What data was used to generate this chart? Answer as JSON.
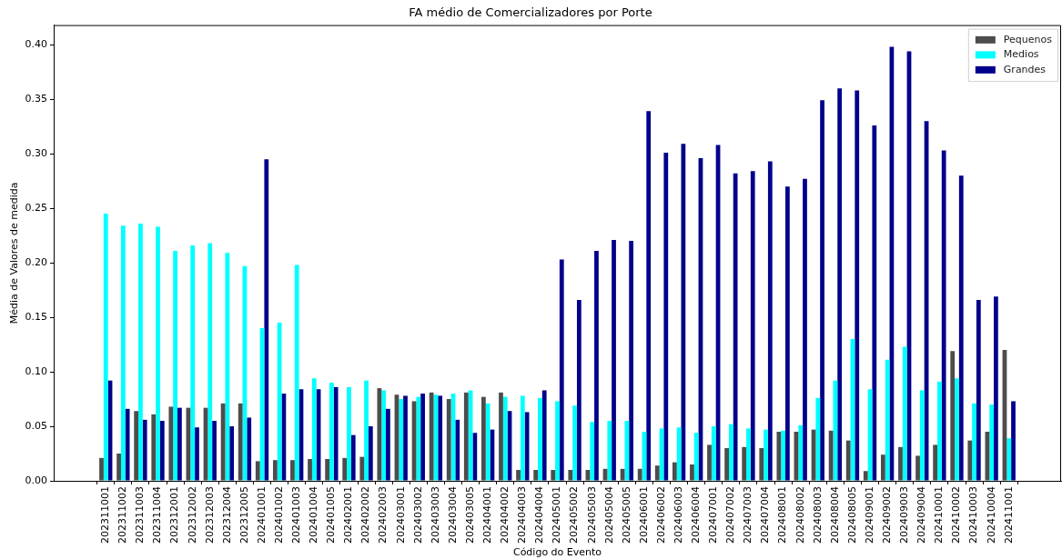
{
  "chart_data": {
    "type": "bar",
    "title": "FA médio de Comercializadores por Porte",
    "xlabel": "Código do Evento",
    "ylabel": "Média de Valores de medida",
    "categories": [
      "202311001",
      "202311002",
      "202311003",
      "202311004",
      "202312001",
      "202312002",
      "202312003",
      "202312004",
      "202312005",
      "202401001",
      "202401002",
      "202401003",
      "202401004",
      "202401005",
      "202402001",
      "202402002",
      "202402003",
      "202403001",
      "202403002",
      "202403003",
      "202403004",
      "202403005",
      "202404001",
      "202404002",
      "202404003",
      "202404004",
      "202405001",
      "202405002",
      "202405003",
      "202405004",
      "202405005",
      "202406001",
      "202406002",
      "202406003",
      "202406004",
      "202407001",
      "202407002",
      "202407003",
      "202407004",
      "202408001",
      "202408002",
      "202408003",
      "202408004",
      "202408005",
      "202409001",
      "202409002",
      "202409003",
      "202409004",
      "202410001",
      "202410002",
      "202410003",
      "202410004",
      "202411001"
    ],
    "series": [
      {
        "name": "Pequenos",
        "color": "#4d4d4d",
        "values": [
          0.021,
          0.025,
          0.064,
          0.061,
          0.068,
          0.067,
          0.067,
          0.071,
          0.071,
          0.018,
          0.019,
          0.019,
          0.02,
          0.02,
          0.021,
          0.022,
          0.085,
          0.079,
          0.073,
          0.081,
          0.075,
          0.081,
          0.077,
          0.081,
          0.01,
          0.01,
          0.01,
          0.01,
          0.01,
          0.011,
          0.011,
          0.011,
          0.014,
          0.017,
          0.015,
          0.033,
          0.03,
          0.031,
          0.03,
          0.045,
          0.045,
          0.047,
          0.046,
          0.037,
          0.009,
          0.024,
          0.031,
          0.023,
          0.033,
          0.119,
          0.037,
          0.045,
          0.12
        ]
      },
      {
        "name": "Medios",
        "color": "#00ffff",
        "values": [
          0.245,
          0.234,
          0.236,
          0.233,
          0.211,
          0.216,
          0.218,
          0.209,
          0.197,
          0.14,
          0.145,
          0.198,
          0.094,
          0.09,
          0.086,
          0.092,
          0.083,
          0.075,
          0.077,
          0.079,
          0.08,
          0.083,
          0.071,
          0.077,
          0.078,
          0.076,
          0.073,
          0.069,
          0.054,
          0.055,
          0.055,
          0.045,
          0.048,
          0.049,
          0.044,
          0.05,
          0.052,
          0.048,
          0.047,
          0.046,
          0.051,
          0.076,
          0.092,
          0.13,
          0.084,
          0.111,
          0.123,
          0.083,
          0.091,
          0.094,
          0.071,
          0.07,
          0.039
        ]
      },
      {
        "name": "Grandes",
        "color": "#00008b",
        "values": [
          0.092,
          0.066,
          0.056,
          0.055,
          0.067,
          0.049,
          0.055,
          0.05,
          0.058,
          0.295,
          0.08,
          0.084,
          0.084,
          0.086,
          0.042,
          0.05,
          0.066,
          0.078,
          0.08,
          0.078,
          0.056,
          0.044,
          0.047,
          0.064,
          0.063,
          0.083,
          0.203,
          0.166,
          0.211,
          0.221,
          0.22,
          0.339,
          0.301,
          0.309,
          0.296,
          0.308,
          0.282,
          0.284,
          0.293,
          0.27,
          0.277,
          0.349,
          0.36,
          0.358,
          0.326,
          0.398,
          0.394,
          0.33,
          0.303,
          0.28,
          0.166,
          0.169,
          0.073
        ]
      }
    ],
    "ylim": [
      0,
      0.418
    ],
    "yticks": [
      {
        "value": 0,
        "label": "0.00"
      },
      {
        "value": 0.05,
        "label": "0.05"
      },
      {
        "value": 0.1,
        "label": "0.10"
      },
      {
        "value": 0.15,
        "label": "0.15"
      },
      {
        "value": 0.2,
        "label": "0.20"
      },
      {
        "value": 0.25,
        "label": "0.25"
      },
      {
        "value": 0.3,
        "label": "0.30"
      },
      {
        "value": 0.35,
        "label": "0.35"
      },
      {
        "value": 0.4,
        "label": "0.40"
      }
    ],
    "legend": "top right"
  }
}
